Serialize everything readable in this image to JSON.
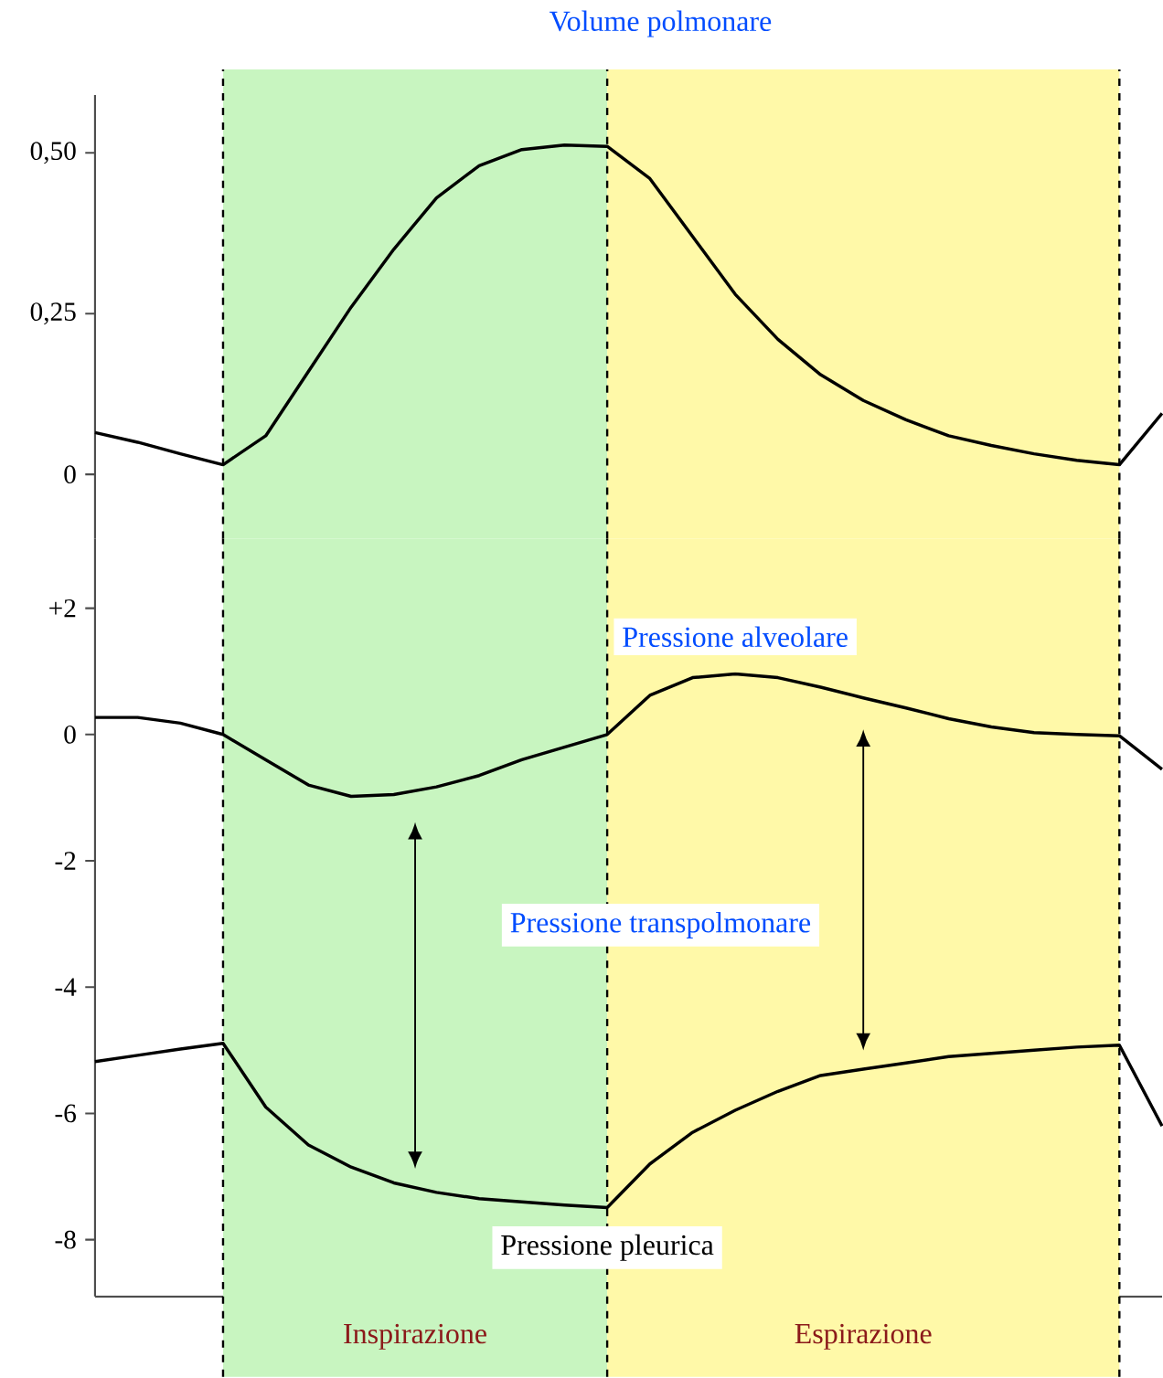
{
  "chart_data": [
    {
      "type": "line",
      "title": "Volume polmonare",
      "ylim": [
        -0.1,
        0.59
      ],
      "tick_labels": "y",
      "marker": "none",
      "line_style": "solid",
      "categories": [
        null,
        null,
        null,
        null,
        null,
        null,
        null,
        null,
        null,
        null,
        null,
        null,
        null,
        null,
        null,
        null,
        null,
        null,
        null,
        null,
        null,
        null,
        null,
        null,
        null,
        null
      ],
      "yticks": [
        {
          "value": 0,
          "label": "0"
        },
        {
          "value": 0.25,
          "label": "0,25"
        },
        {
          "value": 0.5,
          "label": "0,50"
        }
      ],
      "series": [
        {
          "color": "#000000",
          "values": [
            0.065,
            0.05,
            0.032,
            0.015,
            0.06,
            0.16,
            0.26,
            0.35,
            0.43,
            0.48,
            0.505,
            0.512,
            0.51,
            0.46,
            0.37,
            0.28,
            0.21,
            0.155,
            0.115,
            0.085,
            0.06,
            0.045,
            0.032,
            0.022,
            0.015,
            0.095
          ]
        }
      ],
      "grid": "x"
    },
    {
      "type": "line",
      "ylim": [
        -8.9,
        3.1
      ],
      "tick_labels": "y",
      "marker": "none",
      "line_style": "solid",
      "categories": [
        null,
        null,
        null,
        null,
        null,
        null,
        null,
        null,
        null,
        null,
        null,
        null,
        null,
        null,
        null,
        null,
        null,
        null,
        null,
        null,
        null,
        null,
        null,
        null,
        null,
        null
      ],
      "yticks": [
        {
          "value": 2,
          "label": "+2"
        },
        {
          "value": 0,
          "label": "0"
        },
        {
          "value": -2,
          "label": "-2"
        },
        {
          "value": -4,
          "label": "-4"
        },
        {
          "value": -6,
          "label": "-6"
        },
        {
          "value": -8,
          "label": "-8"
        }
      ],
      "series": [
        {
          "name": "Pressione alveolare",
          "color": "#000000",
          "values": [
            0.27,
            0.27,
            0.18,
            0,
            -0.4,
            -0.8,
            -0.98,
            -0.95,
            -0.83,
            -0.65,
            -0.4,
            -0.2,
            0,
            0.62,
            0.9,
            0.96,
            0.9,
            0.75,
            0.58,
            0.42,
            0.25,
            0.12,
            0.03,
            0,
            -0.02,
            -0.55
          ]
        },
        {
          "name": "Pressione pleurica",
          "color": "#000000",
          "values": [
            -5.18,
            -5.08,
            -4.98,
            -4.89,
            -5.9,
            -6.5,
            -6.85,
            -7.1,
            -7.25,
            -7.35,
            -7.4,
            -7.45,
            -7.49,
            -6.8,
            -6.3,
            -5.95,
            -5.65,
            -5.4,
            -5.3,
            -5.2,
            -5.1,
            -5.05,
            -5.0,
            -4.95,
            -4.92,
            -6.2
          ]
        }
      ],
      "annotations": [
        "Pressione transpolmonare",
        "Inspirazione",
        "Espirazione"
      ],
      "grid": "x"
    }
  ]
}
